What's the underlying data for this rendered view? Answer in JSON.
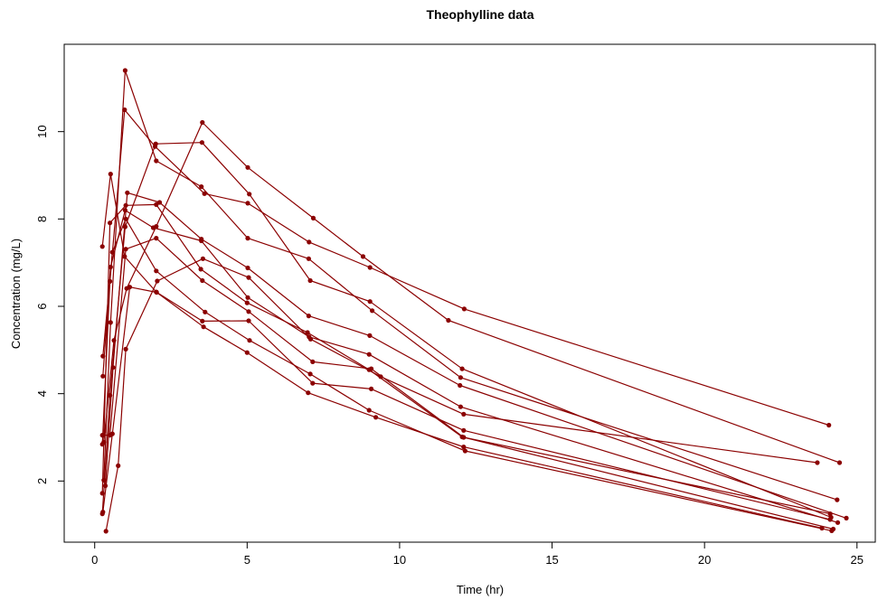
{
  "chart_data": {
    "type": "line",
    "title": "Theophylline data",
    "xlabel": "Time (hr)",
    "ylabel": "Concentration (mg/L)",
    "xlim": [
      -1,
      25.6
    ],
    "ylim": [
      0.6,
      12.0
    ],
    "xticks": [
      0,
      5,
      10,
      15,
      20,
      25
    ],
    "yticks": [
      2,
      4,
      6,
      8,
      10
    ],
    "color": "#8B0000",
    "grid": false,
    "series": [
      {
        "x": [
          0.27,
          0.52,
          1.0,
          1.92,
          3.5,
          5.02,
          7.03,
          9.0,
          12.0,
          24.37
        ],
        "y": [
          4.4,
          6.9,
          8.2,
          7.8,
          7.5,
          6.2,
          5.3,
          4.9,
          3.7,
          1.05
        ]
      },
      {
        "x": [
          0.25,
          0.5,
          1.02,
          2.02,
          3.48,
          5.0,
          6.98,
          9.0,
          12.05,
          24.22
        ],
        "y": [
          1.72,
          7.91,
          8.31,
          8.33,
          6.85,
          6.08,
          5.4,
          4.55,
          3.01,
          0.9
        ]
      },
      {
        "x": [
          0.27,
          0.58,
          1.02,
          2.02,
          3.62,
          5.08,
          7.07,
          9.0,
          12.15,
          24.17
        ],
        "y": [
          4.86,
          7.24,
          8.0,
          6.81,
          5.87,
          5.22,
          4.45,
          3.62,
          2.69,
          0.86
        ]
      },
      {
        "x": [
          0.35,
          0.6,
          1.07,
          2.13,
          3.5,
          5.02,
          7.02,
          9.02,
          11.98,
          24.65
        ],
        "y": [
          1.89,
          4.6,
          8.6,
          8.38,
          7.54,
          6.88,
          5.78,
          5.33,
          4.19,
          1.15
        ]
      },
      {
        "x": [
          0.3,
          0.52,
          1.0,
          2.02,
          3.5,
          5.02,
          7.02,
          9.1,
          12.0,
          24.35
        ],
        "y": [
          2.02,
          5.63,
          11.4,
          9.33,
          8.74,
          7.56,
          7.09,
          5.9,
          4.37,
          1.57
        ]
      },
      {
        "x": [
          0.27,
          0.58,
          1.15,
          2.03,
          3.57,
          5.0,
          7.0,
          9.22,
          12.1,
          23.85
        ],
        "y": [
          1.29,
          3.08,
          6.44,
          6.32,
          5.53,
          4.94,
          4.02,
          3.46,
          2.78,
          0.92
        ]
      },
      {
        "x": [
          0.25,
          0.5,
          1.02,
          2.02,
          3.53,
          5.05,
          7.15,
          9.07,
          12.1,
          24.12
        ],
        "y": [
          3.05,
          3.05,
          7.31,
          7.56,
          6.59,
          5.88,
          4.73,
          4.57,
          3.0,
          1.25
        ]
      },
      {
        "x": [
          0.25,
          0.52,
          0.98,
          2.02,
          3.53,
          5.05,
          7.15,
          9.07,
          12.1,
          24.12
        ],
        "y": [
          7.37,
          9.03,
          7.14,
          6.33,
          5.66,
          5.67,
          4.24,
          4.11,
          3.16,
          1.12
        ]
      },
      {
        "x": [
          0.3,
          0.63,
          1.05,
          2.02,
          3.53,
          5.02,
          7.17,
          8.8,
          11.6,
          24.43
        ],
        "y": [
          2.89,
          5.22,
          6.41,
          7.83,
          10.21,
          9.18,
          8.02,
          7.14,
          5.68,
          2.42
        ]
      },
      {
        "x": [
          0.37,
          0.77,
          1.02,
          2.05,
          3.55,
          5.05,
          7.08,
          9.38,
          12.1,
          23.7
        ],
        "y": [
          0.85,
          2.35,
          5.02,
          6.58,
          7.09,
          6.66,
          5.25,
          4.39,
          3.53,
          2.42
        ]
      },
      {
        "x": [
          0.25,
          0.5,
          0.98,
          1.98,
          3.6,
          5.02,
          7.03,
          9.03,
          12.12,
          24.08
        ],
        "y": [
          2.84,
          6.57,
          10.5,
          9.66,
          8.58,
          8.36,
          7.47,
          6.89,
          5.94,
          3.28
        ]
      },
      {
        "x": [
          0.25,
          0.5,
          1.0,
          2.0,
          3.52,
          5.07,
          7.07,
          9.03,
          12.05,
          24.15
        ],
        "y": [
          1.25,
          3.96,
          7.82,
          9.72,
          9.75,
          8.57,
          6.59,
          6.11,
          4.57,
          1.17
        ]
      }
    ]
  }
}
